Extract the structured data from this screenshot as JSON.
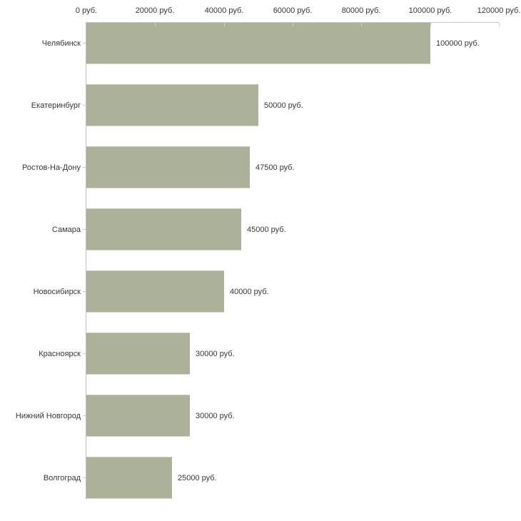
{
  "chart_data": {
    "type": "bar",
    "orientation": "horizontal",
    "categories": [
      "Челябинск",
      "Екатеринбург",
      "Ростов-На-Дону",
      "Самара",
      "Новосибирск",
      "Красноярск",
      "Нижний Новгород",
      "Волгоград"
    ],
    "values": [
      100000,
      50000,
      47500,
      45000,
      40000,
      30000,
      30000,
      25000
    ],
    "value_labels": [
      "100000 руб.",
      "50000 руб.",
      "47500 руб.",
      "45000 руб.",
      "40000 руб.",
      "30000 руб.",
      "30000 руб.",
      "25000 руб."
    ],
    "unit": "руб.",
    "xlim": [
      0,
      120000
    ],
    "x_ticks": [
      0,
      20000,
      40000,
      60000,
      80000,
      100000,
      120000
    ],
    "x_tick_labels": [
      "0 руб.",
      "20000 руб.",
      "40000 руб.",
      "60000 руб.",
      "80000 руб.",
      "100000 руб.",
      "120000 руб."
    ],
    "xaxis_position": "top",
    "grid": false,
    "legend": false,
    "bar_color": "#acb19a",
    "axis_line_color": "#c0c0c0",
    "text_color": "#363636",
    "background_color": "#ffffff"
  }
}
